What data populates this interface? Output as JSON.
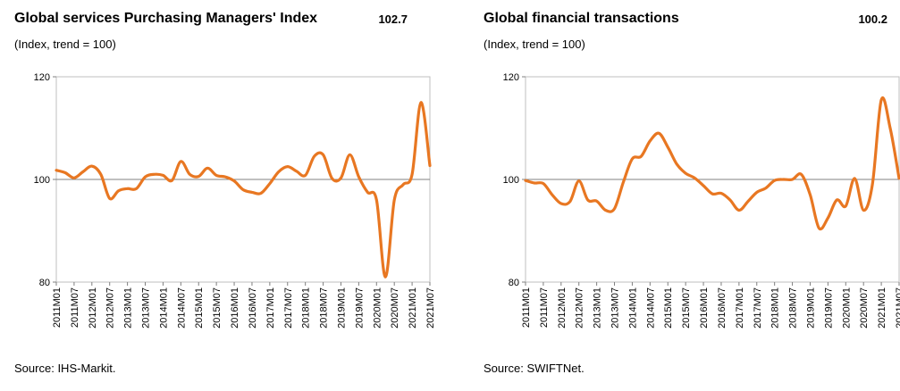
{
  "charts": [
    {
      "title": "Global services Purchasing Managers' Index",
      "latest_value": "102.7",
      "subtitle": "(Index, trend = 100)",
      "source_prefix": "Source:",
      "source_name": "IHS-Markit.",
      "line_color": "#E87722",
      "chart_data": {
        "type": "line",
        "title": "Global services Purchasing Managers' Index",
        "ylabel": "(Index, trend = 100)",
        "ylim": [
          80,
          120
        ],
        "yticks": [
          80,
          100,
          120
        ],
        "reference_line": 100,
        "x_tick_labels": [
          "2011M01",
          "2011M07",
          "2012M01",
          "2012M07",
          "2013M01",
          "2013M07",
          "2014M01",
          "2014M07",
          "2015M01",
          "2015M07",
          "2016M01",
          "2016M07",
          "2017M01",
          "2017M07",
          "2018M01",
          "2018M07",
          "2019M01",
          "2019M07",
          "2020M01",
          "2020M07",
          "2021M01",
          "2021M07"
        ],
        "x": [
          "2011M01",
          "2011M04",
          "2011M07",
          "2011M10",
          "2012M01",
          "2012M04",
          "2012M07",
          "2012M10",
          "2013M01",
          "2013M04",
          "2013M07",
          "2013M10",
          "2014M01",
          "2014M04",
          "2014M07",
          "2014M10",
          "2015M01",
          "2015M04",
          "2015M07",
          "2015M10",
          "2016M01",
          "2016M04",
          "2016M07",
          "2016M10",
          "2017M01",
          "2017M04",
          "2017M07",
          "2017M10",
          "2018M01",
          "2018M04",
          "2018M07",
          "2018M10",
          "2019M01",
          "2019M04",
          "2019M07",
          "2019M10",
          "2020M01",
          "2020M04",
          "2020M07",
          "2020M10",
          "2021M01",
          "2021M04",
          "2021M07"
        ],
        "series": [
          {
            "values": [
              101.8,
              101.3,
              100.3,
              101.5,
              102.6,
              101.0,
              96.3,
              97.8,
              98.2,
              98.2,
              100.5,
              101.0,
              100.8,
              99.8,
              103.5,
              101.0,
              100.6,
              102.2,
              100.8,
              100.5,
              99.7,
              98.0,
              97.5,
              97.3,
              99.2,
              101.5,
              102.5,
              101.6,
              100.8,
              104.5,
              104.8,
              100.2,
              100.3,
              104.8,
              100.5,
              97.5,
              96.0,
              81.0,
              96.0,
              99.0,
              101.0,
              115.0,
              102.7
            ]
          }
        ]
      }
    },
    {
      "title": "Global financial transactions",
      "latest_value": "100.2",
      "subtitle": "(Index, trend = 100)",
      "source_prefix": "Source:",
      "source_name": "SWIFTNet.",
      "line_color": "#E87722",
      "chart_data": {
        "type": "line",
        "title": "Global financial transactions",
        "ylabel": "(Index, trend = 100)",
        "ylim": [
          80,
          120
        ],
        "yticks": [
          80,
          100,
          120
        ],
        "reference_line": 100,
        "x_tick_labels": [
          "2011M01",
          "2011M07",
          "2012M01",
          "2012M07",
          "2013M01",
          "2013M07",
          "2014M01",
          "2014M07",
          "2015M01",
          "2015M07",
          "2016M01",
          "2016M07",
          "2017M01",
          "2017M07",
          "2018M01",
          "2018M07",
          "2019M01",
          "2019M07",
          "2020M01",
          "2020M07",
          "2021M01",
          "2021M07"
        ],
        "x": [
          "2011M01",
          "2011M04",
          "2011M07",
          "2011M10",
          "2012M01",
          "2012M04",
          "2012M07",
          "2012M10",
          "2013M01",
          "2013M04",
          "2013M07",
          "2013M10",
          "2014M01",
          "2014M04",
          "2014M07",
          "2014M10",
          "2015M01",
          "2015M04",
          "2015M07",
          "2015M10",
          "2016M01",
          "2016M04",
          "2016M07",
          "2016M10",
          "2017M01",
          "2017M04",
          "2017M07",
          "2017M10",
          "2018M01",
          "2018M04",
          "2018M07",
          "2018M10",
          "2019M01",
          "2019M04",
          "2019M07",
          "2019M10",
          "2020M01",
          "2020M04",
          "2020M07",
          "2020M10",
          "2021M01",
          "2021M04",
          "2021M07"
        ],
        "series": [
          {
            "values": [
              99.8,
              99.3,
              99.2,
              97.0,
              95.3,
              95.7,
              99.7,
              96.0,
              95.8,
              94.0,
              94.3,
              99.5,
              104.0,
              104.5,
              107.5,
              109.0,
              106.3,
              103.0,
              101.2,
              100.3,
              98.8,
              97.2,
              97.3,
              96.0,
              94.0,
              95.7,
              97.5,
              98.3,
              99.8,
              100.0,
              100.0,
              101.0,
              97.0,
              90.5,
              92.5,
              96.0,
              94.8,
              100.2,
              94.0,
              99.0,
              115.5,
              110.0,
              100.2
            ]
          }
        ]
      }
    }
  ]
}
